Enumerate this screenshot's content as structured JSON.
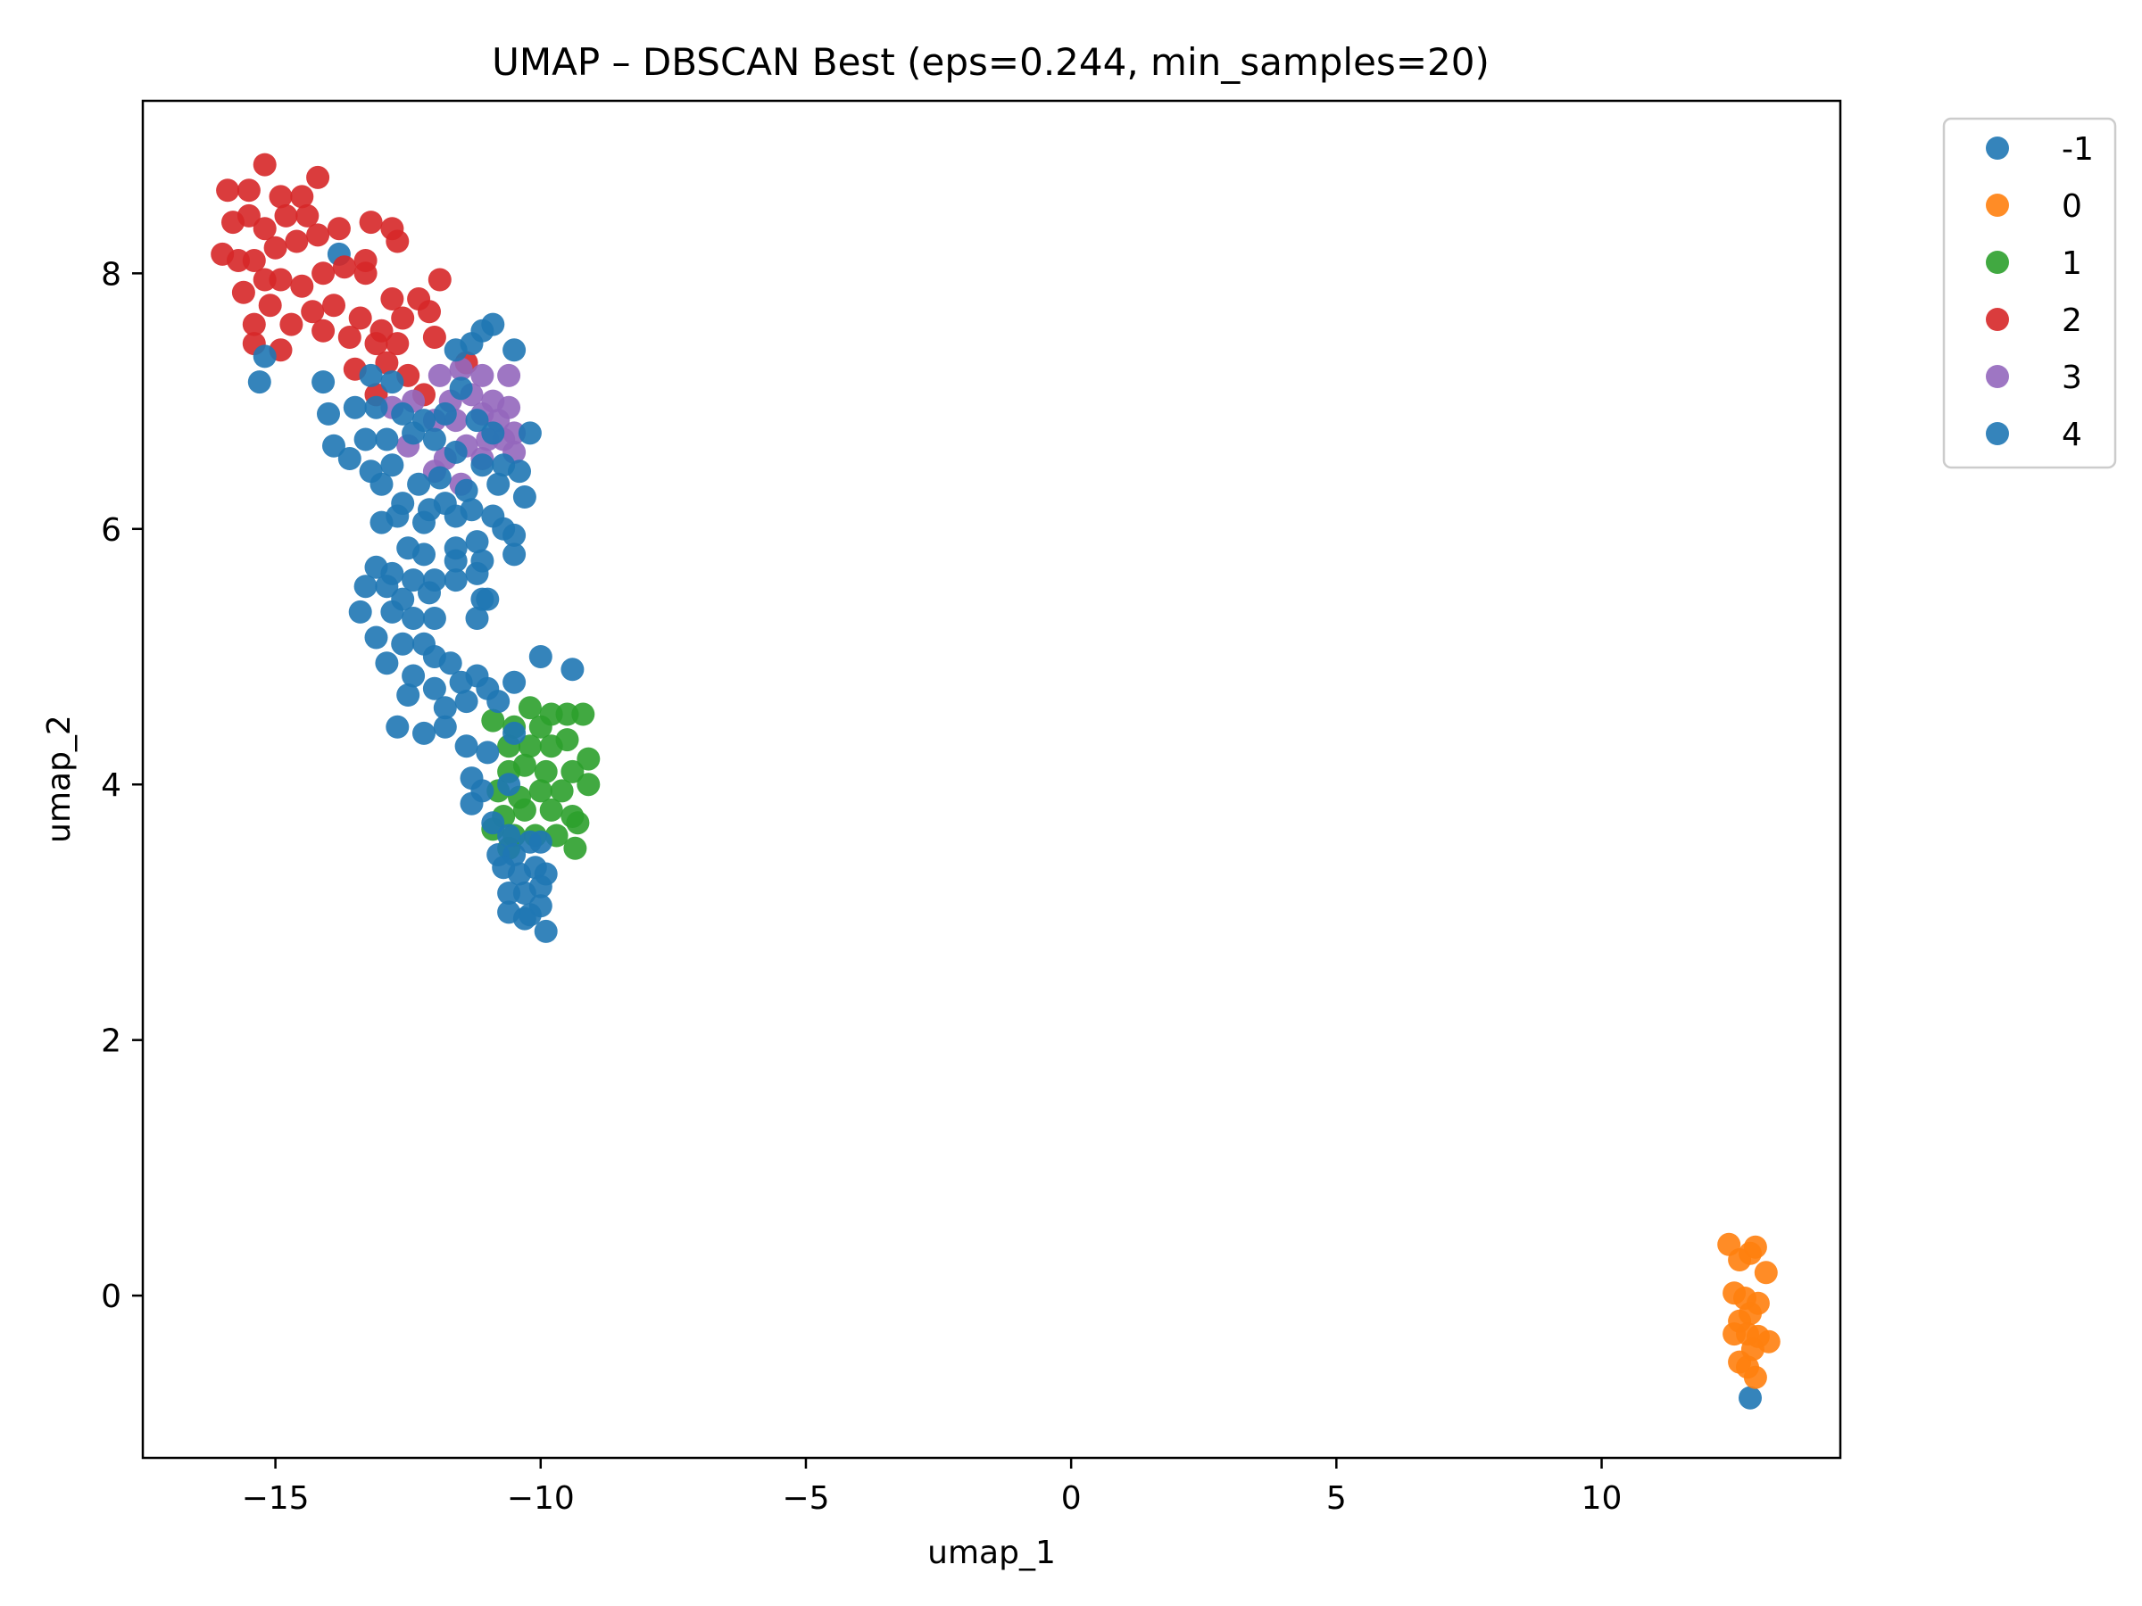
{
  "chart_data": {
    "type": "scatter",
    "title": "UMAP – DBSCAN Best (eps=0.244, min_samples=20)",
    "xlabel": "umap_1",
    "ylabel": "umap_2",
    "xlim": [
      -17.5,
      14.5
    ],
    "ylim": [
      -1.27,
      9.35
    ],
    "x_ticks": [
      -15,
      -10,
      -5,
      0,
      5,
      10
    ],
    "x_tick_labels": [
      "−15",
      "−10",
      "−5",
      "0",
      "5",
      "10"
    ],
    "y_ticks": [
      0,
      2,
      4,
      6,
      8
    ],
    "y_tick_labels": [
      "0",
      "2",
      "4",
      "6",
      "8"
    ],
    "grid": false,
    "legend_position": "outside-right-top",
    "series": [
      {
        "name": "-1",
        "color": "#1f77b4",
        "points": [
          [
            -13.8,
            8.15
          ],
          [
            -15.3,
            7.15
          ],
          [
            12.8,
            -0.8
          ]
        ]
      },
      {
        "name": "0",
        "color": "#ff7f0e",
        "points": [
          [
            12.4,
            0.4
          ],
          [
            12.6,
            0.28
          ],
          [
            12.8,
            0.33
          ],
          [
            12.9,
            0.38
          ],
          [
            13.1,
            0.18
          ],
          [
            12.5,
            0.02
          ],
          [
            12.7,
            -0.02
          ],
          [
            12.95,
            -0.06
          ],
          [
            12.6,
            -0.2
          ],
          [
            12.8,
            -0.14
          ],
          [
            12.5,
            -0.3
          ],
          [
            12.75,
            -0.3
          ],
          [
            12.95,
            -0.32
          ],
          [
            13.15,
            -0.36
          ],
          [
            12.6,
            -0.52
          ],
          [
            12.75,
            -0.56
          ],
          [
            12.9,
            -0.64
          ],
          [
            12.85,
            -0.42
          ]
        ]
      },
      {
        "name": "1",
        "color": "#2ca02c",
        "points": [
          [
            -10.9,
            4.5
          ],
          [
            -10.2,
            4.6
          ],
          [
            -9.8,
            4.55
          ],
          [
            -9.5,
            4.55
          ],
          [
            -9.2,
            4.55
          ],
          [
            -10.6,
            4.3
          ],
          [
            -10.2,
            4.3
          ],
          [
            -9.8,
            4.3
          ],
          [
            -9.5,
            4.35
          ],
          [
            -9.1,
            4.2
          ],
          [
            -10.6,
            4.1
          ],
          [
            -10.3,
            4.15
          ],
          [
            -9.9,
            4.1
          ],
          [
            -9.4,
            4.1
          ],
          [
            -10.8,
            3.95
          ],
          [
            -10.4,
            3.9
          ],
          [
            -10.0,
            3.95
          ],
          [
            -9.6,
            3.95
          ],
          [
            -9.1,
            4.0
          ],
          [
            -10.7,
            3.75
          ],
          [
            -10.3,
            3.8
          ],
          [
            -9.8,
            3.8
          ],
          [
            -9.4,
            3.75
          ],
          [
            -10.9,
            3.65
          ],
          [
            -10.5,
            3.6
          ],
          [
            -10.1,
            3.6
          ],
          [
            -9.7,
            3.6
          ],
          [
            -9.3,
            3.7
          ],
          [
            -10.6,
            3.5
          ],
          [
            -9.35,
            3.5
          ],
          [
            -10.0,
            4.45
          ],
          [
            -10.5,
            4.45
          ]
        ]
      },
      {
        "name": "2",
        "color": "#d62728",
        "points": [
          [
            -15.9,
            8.65
          ],
          [
            -15.5,
            8.65
          ],
          [
            -15.2,
            8.85
          ],
          [
            -14.9,
            8.6
          ],
          [
            -14.5,
            8.6
          ],
          [
            -14.2,
            8.75
          ],
          [
            -15.8,
            8.4
          ],
          [
            -15.5,
            8.45
          ],
          [
            -15.2,
            8.35
          ],
          [
            -14.8,
            8.45
          ],
          [
            -14.4,
            8.45
          ],
          [
            -16.0,
            8.15
          ],
          [
            -15.7,
            8.1
          ],
          [
            -15.4,
            8.1
          ],
          [
            -15.0,
            8.2
          ],
          [
            -14.6,
            8.25
          ],
          [
            -14.2,
            8.3
          ],
          [
            -13.8,
            8.35
          ],
          [
            -13.2,
            8.4
          ],
          [
            -12.8,
            8.35
          ],
          [
            -15.6,
            7.85
          ],
          [
            -15.2,
            7.95
          ],
          [
            -14.9,
            7.95
          ],
          [
            -14.5,
            7.9
          ],
          [
            -14.1,
            8.0
          ],
          [
            -13.7,
            8.05
          ],
          [
            -13.3,
            8.0
          ],
          [
            -12.8,
            7.8
          ],
          [
            -12.3,
            7.8
          ],
          [
            -11.9,
            7.95
          ],
          [
            -15.4,
            7.6
          ],
          [
            -15.1,
            7.75
          ],
          [
            -14.7,
            7.6
          ],
          [
            -14.3,
            7.7
          ],
          [
            -13.9,
            7.75
          ],
          [
            -13.4,
            7.65
          ],
          [
            -13.0,
            7.55
          ],
          [
            -12.6,
            7.65
          ],
          [
            -12.1,
            7.7
          ],
          [
            -15.4,
            7.45
          ],
          [
            -14.9,
            7.4
          ],
          [
            -14.1,
            7.55
          ],
          [
            -13.6,
            7.5
          ],
          [
            -13.1,
            7.45
          ],
          [
            -12.7,
            7.45
          ],
          [
            -12.0,
            7.5
          ],
          [
            -11.4,
            7.3
          ],
          [
            -13.5,
            7.25
          ],
          [
            -12.9,
            7.3
          ],
          [
            -12.5,
            7.2
          ],
          [
            -13.1,
            7.05
          ],
          [
            -12.2,
            7.05
          ],
          [
            -12.7,
            8.25
          ],
          [
            -13.3,
            8.1
          ]
        ]
      },
      {
        "name": "3",
        "color": "#9467bd",
        "points": [
          [
            -11.9,
            7.2
          ],
          [
            -11.5,
            7.25
          ],
          [
            -11.1,
            7.2
          ],
          [
            -10.6,
            7.2
          ],
          [
            -12.4,
            7.0
          ],
          [
            -11.7,
            7.0
          ],
          [
            -11.3,
            7.05
          ],
          [
            -10.9,
            7.0
          ],
          [
            -10.6,
            6.95
          ],
          [
            -12.0,
            6.85
          ],
          [
            -11.6,
            6.85
          ],
          [
            -11.1,
            6.9
          ],
          [
            -10.8,
            6.85
          ],
          [
            -10.5,
            6.75
          ],
          [
            -12.5,
            6.65
          ],
          [
            -11.8,
            6.55
          ],
          [
            -11.4,
            6.65
          ],
          [
            -11.0,
            6.7
          ],
          [
            -10.7,
            6.7
          ],
          [
            -10.5,
            6.6
          ],
          [
            -12.0,
            6.45
          ],
          [
            -11.5,
            6.35
          ],
          [
            -11.1,
            6.55
          ],
          [
            -12.8,
            6.95
          ]
        ]
      },
      {
        "name": "4",
        "color": "#1f77b4",
        "points": [
          [
            -15.2,
            7.35
          ],
          [
            -14.1,
            7.15
          ],
          [
            -13.2,
            7.2
          ],
          [
            -12.8,
            7.15
          ],
          [
            -11.6,
            7.4
          ],
          [
            -11.3,
            7.45
          ],
          [
            -11.1,
            7.55
          ],
          [
            -10.9,
            7.6
          ],
          [
            -10.5,
            7.4
          ],
          [
            -11.5,
            7.1
          ],
          [
            -14.0,
            6.9
          ],
          [
            -13.5,
            6.95
          ],
          [
            -13.1,
            6.95
          ],
          [
            -12.6,
            6.9
          ],
          [
            -12.2,
            6.85
          ],
          [
            -11.8,
            6.9
          ],
          [
            -11.2,
            6.85
          ],
          [
            -10.9,
            6.75
          ],
          [
            -10.2,
            6.75
          ],
          [
            -13.9,
            6.65
          ],
          [
            -13.3,
            6.7
          ],
          [
            -12.9,
            6.7
          ],
          [
            -12.4,
            6.75
          ],
          [
            -12.0,
            6.7
          ],
          [
            -11.6,
            6.6
          ],
          [
            -11.1,
            6.5
          ],
          [
            -10.7,
            6.5
          ],
          [
            -13.6,
            6.55
          ],
          [
            -13.2,
            6.45
          ],
          [
            -12.8,
            6.5
          ],
          [
            -12.3,
            6.35
          ],
          [
            -11.9,
            6.4
          ],
          [
            -11.4,
            6.3
          ],
          [
            -10.8,
            6.35
          ],
          [
            -10.4,
            6.45
          ],
          [
            -10.3,
            6.25
          ],
          [
            -13.0,
            6.35
          ],
          [
            -12.6,
            6.2
          ],
          [
            -12.1,
            6.15
          ],
          [
            -11.8,
            6.2
          ],
          [
            -11.3,
            6.15
          ],
          [
            -10.9,
            6.1
          ],
          [
            -10.7,
            6.0
          ],
          [
            -13.0,
            6.05
          ],
          [
            -12.7,
            6.1
          ],
          [
            -12.2,
            6.05
          ],
          [
            -11.6,
            6.1
          ],
          [
            -10.5,
            5.95
          ],
          [
            -11.2,
            5.9
          ],
          [
            -10.5,
            5.8
          ],
          [
            -12.5,
            5.85
          ],
          [
            -12.2,
            5.8
          ],
          [
            -11.6,
            5.85
          ],
          [
            -11.6,
            5.75
          ],
          [
            -11.1,
            5.75
          ],
          [
            -13.1,
            5.7
          ],
          [
            -12.8,
            5.65
          ],
          [
            -12.4,
            5.6
          ],
          [
            -12.0,
            5.6
          ],
          [
            -11.2,
            5.65
          ],
          [
            -13.3,
            5.55
          ],
          [
            -12.9,
            5.55
          ],
          [
            -12.6,
            5.45
          ],
          [
            -12.1,
            5.5
          ],
          [
            -11.6,
            5.6
          ],
          [
            -11.1,
            5.45
          ],
          [
            -13.4,
            5.35
          ],
          [
            -12.8,
            5.35
          ],
          [
            -12.4,
            5.3
          ],
          [
            -12.0,
            5.3
          ],
          [
            -11.2,
            5.3
          ],
          [
            -11.0,
            5.45
          ],
          [
            -13.1,
            5.15
          ],
          [
            -12.6,
            5.1
          ],
          [
            -12.2,
            5.1
          ],
          [
            -12.9,
            4.95
          ],
          [
            -12.4,
            4.85
          ],
          [
            -12.0,
            5.0
          ],
          [
            -11.7,
            4.95
          ],
          [
            -12.5,
            4.7
          ],
          [
            -12.0,
            4.75
          ],
          [
            -11.5,
            4.8
          ],
          [
            -11.2,
            4.85
          ],
          [
            -11.0,
            4.75
          ],
          [
            -10.8,
            4.65
          ],
          [
            -10.5,
            4.8
          ],
          [
            -10.0,
            5.0
          ],
          [
            -9.4,
            4.9
          ],
          [
            -11.8,
            4.6
          ],
          [
            -11.4,
            4.65
          ],
          [
            -12.7,
            4.45
          ],
          [
            -12.2,
            4.4
          ],
          [
            -11.8,
            4.45
          ],
          [
            -11.4,
            4.3
          ],
          [
            -11.0,
            4.25
          ],
          [
            -10.5,
            4.4
          ],
          [
            -11.3,
            4.05
          ],
          [
            -11.1,
            3.95
          ],
          [
            -10.6,
            4.0
          ],
          [
            -11.3,
            3.85
          ],
          [
            -10.9,
            3.7
          ],
          [
            -10.6,
            3.6
          ],
          [
            -10.8,
            3.45
          ],
          [
            -10.5,
            3.45
          ],
          [
            -10.2,
            3.55
          ],
          [
            -10.0,
            3.55
          ],
          [
            -10.7,
            3.35
          ],
          [
            -10.4,
            3.3
          ],
          [
            -10.1,
            3.35
          ],
          [
            -9.9,
            3.3
          ],
          [
            -10.6,
            3.15
          ],
          [
            -10.3,
            3.15
          ],
          [
            -10.0,
            3.2
          ],
          [
            -10.6,
            3.0
          ],
          [
            -10.3,
            2.95
          ],
          [
            -10.0,
            3.05
          ],
          [
            -9.9,
            2.85
          ],
          [
            -10.2,
            2.98
          ]
        ]
      }
    ]
  }
}
